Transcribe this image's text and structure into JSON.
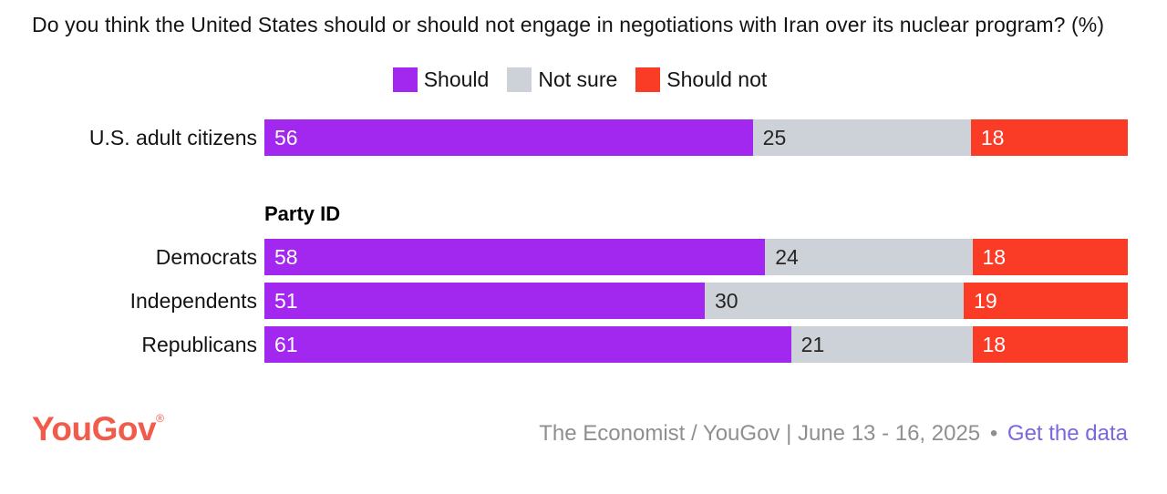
{
  "title": "Do you think the United States should or should not engage in negotiations with Iran over its nuclear program? (%)",
  "legend": {
    "position": "top-center",
    "items": [
      {
        "label": "Should",
        "color": "#A228F0"
      },
      {
        "label": "Not sure",
        "color": "#CDD1D8"
      },
      {
        "label": "Should not",
        "color": "#FA3B26"
      }
    ]
  },
  "chart_data": {
    "type": "bar",
    "orientation": "horizontal",
    "stacked": true,
    "title": "Do you think the United States should or should not engage in negotiations with Iran over its nuclear program? (%)",
    "series_names": [
      "Should",
      "Not sure",
      "Should not"
    ],
    "colors": [
      "#A228F0",
      "#CDD1D8",
      "#FA3B26"
    ],
    "value_label_colors": [
      "#FFFFFF",
      "#262626",
      "#FFFFFF"
    ],
    "xlim": [
      0,
      100
    ],
    "grid": false,
    "group_heading": "Party ID",
    "rows": [
      {
        "group": "All",
        "category": "U.S. adult citizens",
        "values": [
          56,
          25,
          18
        ]
      },
      {
        "group": "Party ID",
        "category": "Democrats",
        "values": [
          58,
          24,
          18
        ]
      },
      {
        "group": "Party ID",
        "category": "Independents",
        "values": [
          51,
          30,
          19
        ]
      },
      {
        "group": "Party ID",
        "category": "Republicans",
        "values": [
          61,
          21,
          18
        ]
      }
    ]
  },
  "footer": {
    "logo": "YouGov",
    "logo_registered": "®",
    "source": "The Economist / YouGov | June 13 - 16, 2025",
    "separator": "•",
    "link": "Get the data"
  },
  "colors": {
    "accent_purple": "#A228F0",
    "neutral_gray": "#CDD1D8",
    "accent_red": "#FA3B26",
    "logo": "#F05B4B",
    "source_text": "#8F8F8F",
    "link": "#7C66DF",
    "title_text": "#141414"
  }
}
